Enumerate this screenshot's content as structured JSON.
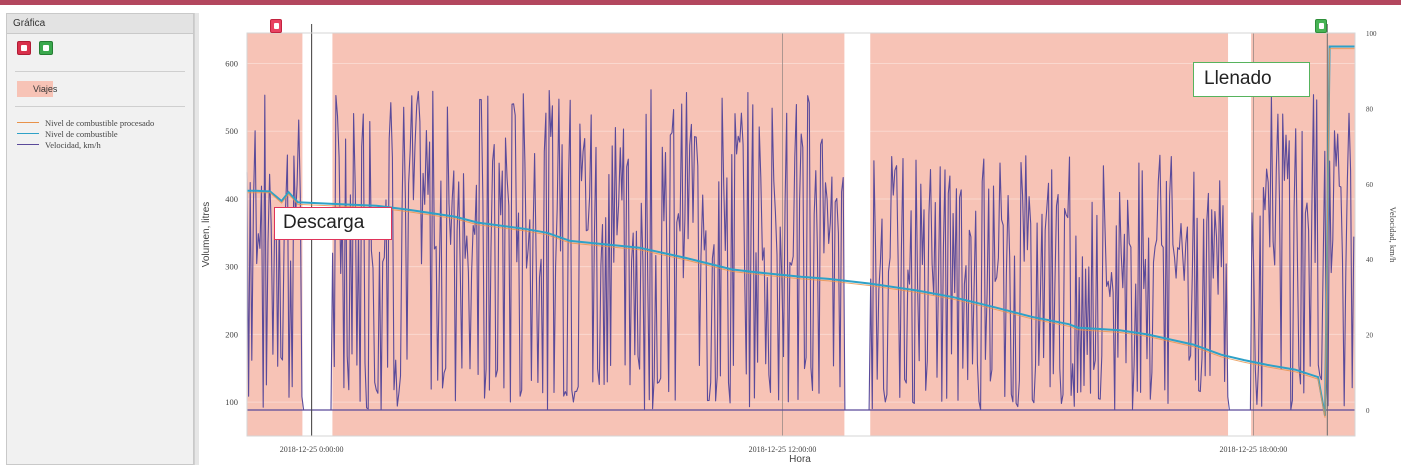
{
  "panel": {
    "title": "Gráfica",
    "trips_label": "Viajes",
    "legend": [
      {
        "label": "Nivel de combustible procesado",
        "color": "#e8924a"
      },
      {
        "label": "Nivel de combustible",
        "color": "#2ea1c7"
      },
      {
        "label": "Velocidad, km/h",
        "color": "#5a4a9a"
      }
    ]
  },
  "colors": {
    "trip": "#f7c3b6",
    "fuel": "#2ea1c7",
    "fuel_processed": "#e8924a",
    "speed": "#5a4a9a",
    "drain": "#e0335a",
    "fill": "#56b35d"
  },
  "callouts": {
    "drain": "Descarga",
    "fill": "Llenado"
  },
  "chart_data": {
    "type": "line",
    "xlabel": "Hora",
    "ylabel": "Volumen, litres",
    "y2label": "Velocidad, km/h",
    "ylim": [
      50,
      645
    ],
    "y2lim": [
      0,
      100
    ],
    "yticks": [
      100,
      200,
      300,
      400,
      500,
      600
    ],
    "y2ticks": [
      0,
      20,
      40,
      60,
      80,
      100
    ],
    "x_tick_labels": [
      "2018-12-25 0:00:00",
      "2018-12-25 12:00:00",
      "2018-12-25 18:00:00"
    ],
    "x_hours": [
      0,
      24
    ],
    "x_tick_hours": [
      1.4,
      11.6,
      21.8
    ],
    "trips": [
      [
        0,
        1.2
      ],
      [
        1.85,
        12.94
      ],
      [
        13.5,
        21.25
      ],
      [
        21.75,
        24
      ]
    ],
    "events": [
      {
        "type": "drain",
        "hour": 1.4
      },
      {
        "type": "fill",
        "hour": 23.4
      }
    ],
    "series": [
      {
        "name": "Nivel de combustible",
        "hours": [
          0,
          0.2,
          0.5,
          0.75,
          0.9,
          1.1,
          1.8,
          2.8,
          3.5,
          4.5,
          5.0,
          6.0,
          6.5,
          7.0,
          8.5,
          9.5,
          10.5,
          11.0,
          12.0,
          12.6,
          13.5,
          14.5,
          15.3,
          16.2,
          17.0,
          17.8,
          18.0,
          18.9,
          19.5,
          20.5,
          21.1,
          21.6,
          22.1,
          22.7,
          23.2,
          23.35,
          23.45,
          24
        ],
        "values": [
          412,
          412,
          411,
          397,
          410,
          395,
          393,
          390,
          384,
          374,
          365,
          356,
          350,
          338,
          328,
          313,
          296,
          292,
          285,
          282,
          275,
          265,
          255,
          240,
          226,
          215,
          210,
          206,
          200,
          185,
          170,
          162,
          155,
          148,
          137,
          80,
          625,
          625
        ]
      },
      {
        "name": "Nivel de combustible procesado",
        "hours": [
          0,
          0.5,
          0.75,
          0.9,
          1.1,
          1.8,
          2.8,
          3.5,
          4.5,
          5.0,
          6.0,
          6.5,
          7.0,
          8.5,
          9.5,
          10.5,
          11.0,
          12.0,
          12.6,
          13.5,
          14.5,
          15.3,
          16.2,
          17.0,
          17.8,
          18.0,
          18.9,
          19.5,
          20.5,
          21.1,
          21.6,
          22.1,
          22.7,
          23.2,
          23.35,
          23.45,
          24
        ],
        "values": [
          409,
          409,
          394,
          407,
          392,
          390,
          387,
          381,
          371,
          362,
          353,
          347,
          335,
          325,
          310,
          293,
          289,
          282,
          279,
          272,
          262,
          252,
          237,
          223,
          212,
          207,
          203,
          197,
          182,
          167,
          159,
          152,
          145,
          134,
          77,
          622,
          622
        ]
      }
    ]
  }
}
